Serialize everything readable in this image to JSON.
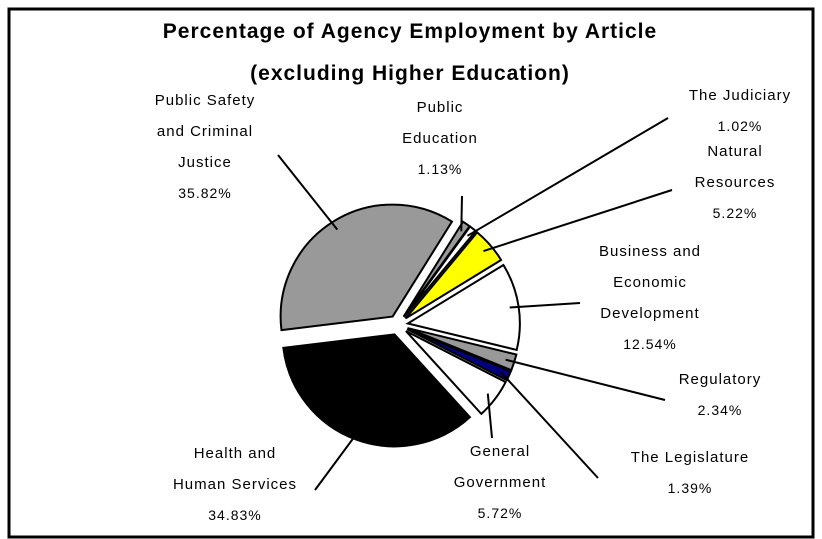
{
  "chart_data": {
    "type": "pie",
    "title": "Percentage of Agency Employment by Article",
    "subtitle": "(excluding Higher Education)",
    "categories": [
      "Public Education",
      "The Judiciary",
      "Natural Resources",
      "Business and Economic Development",
      "Regulatory",
      "The Legislature",
      "General Government",
      "Health and Human Services",
      "Public Safety and Criminal Justice"
    ],
    "values": [
      1.13,
      1.02,
      5.22,
      12.54,
      2.34,
      1.39,
      5.72,
      34.83,
      35.82
    ],
    "value_labels": [
      "1.13%",
      "1.02%",
      "5.22%",
      "12.54%",
      "2.34%",
      "1.39%",
      "5.72%",
      "34.83%",
      "35.82%"
    ],
    "colors": [
      "#999999",
      "#ffffff",
      "#ffff00",
      "#ffffff",
      "#999999",
      "#000080",
      "#ffffff",
      "#000000",
      "#999999"
    ]
  }
}
